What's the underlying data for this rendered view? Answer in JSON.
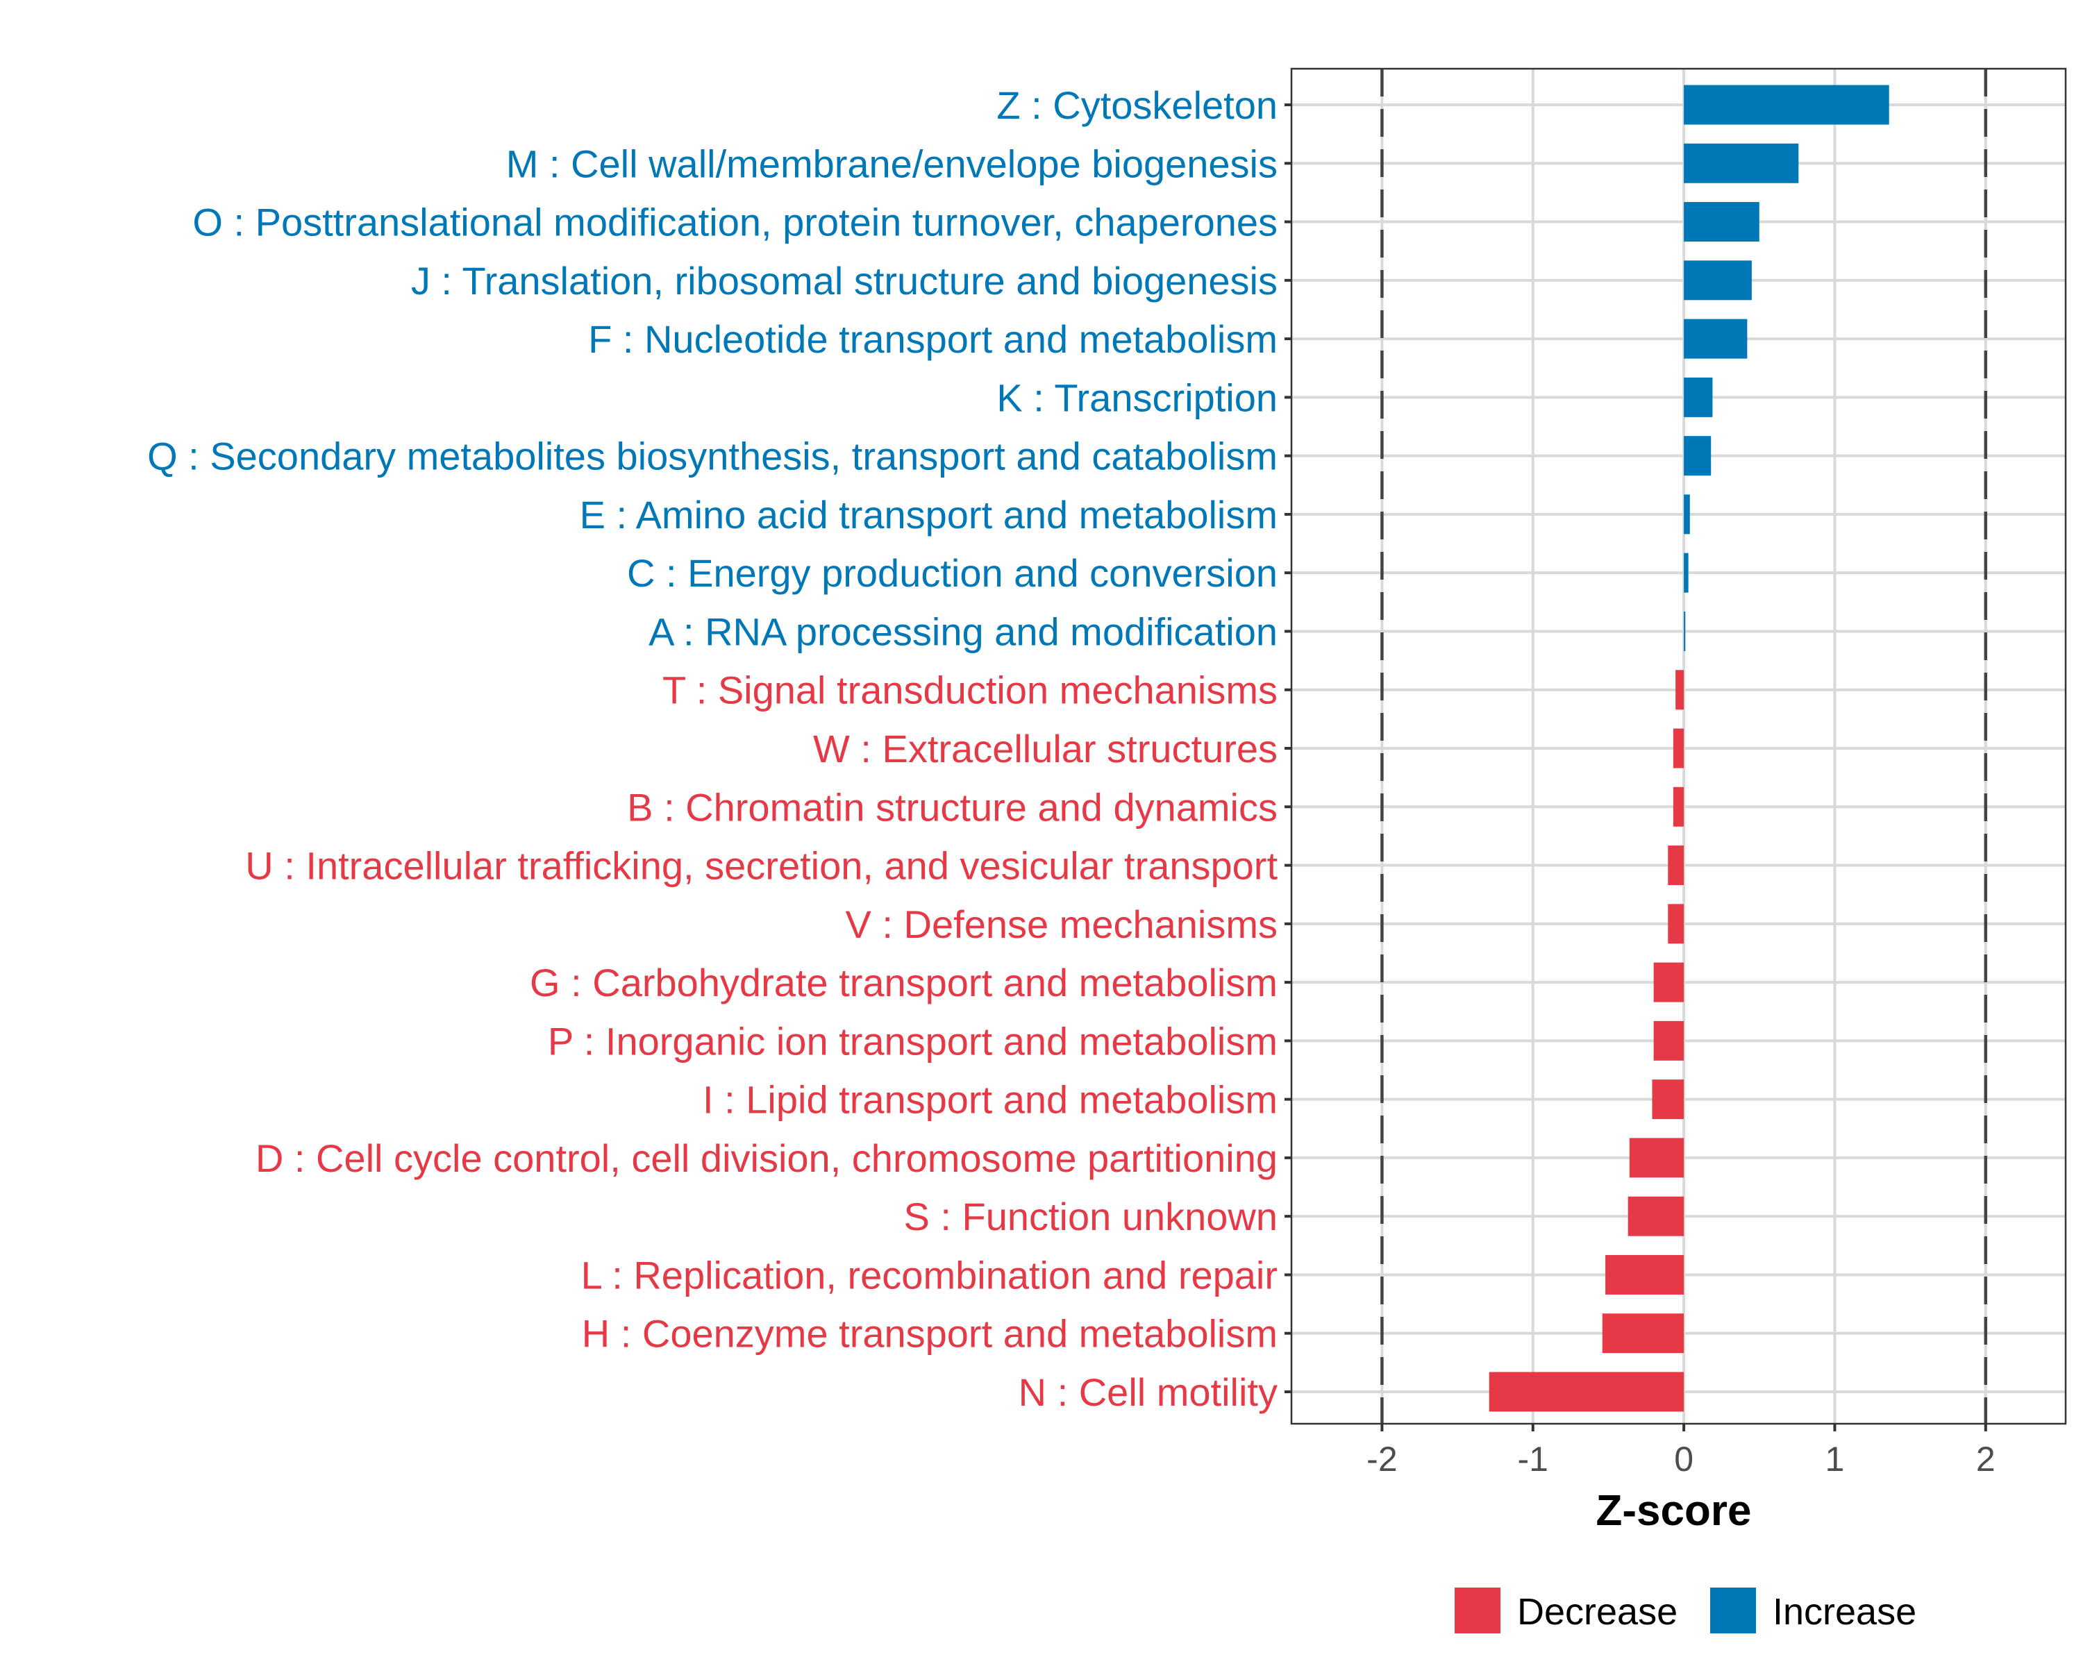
{
  "chart_data": {
    "type": "bar",
    "orientation": "horizontal",
    "title": "",
    "xlabel": "Z-score",
    "ylabel": "",
    "xlim": [
      -2.6,
      2.53
    ],
    "xticks": [
      -2,
      -1,
      0,
      1,
      2
    ],
    "xtick_labels": [
      "-2",
      "-1",
      "0",
      "1",
      "2"
    ],
    "reference_lines": [
      -2,
      2
    ],
    "grid": true,
    "legend_position": "bottom",
    "legend": [
      {
        "label": "Decrease",
        "color": "#E63946"
      },
      {
        "label": "Increase",
        "color": "#0077B6"
      }
    ],
    "colors": {
      "Decrease": "#E63946",
      "Increase": "#0077B6"
    },
    "categories": [
      "Z : Cytoskeleton",
      "M : Cell wall/membrane/envelope biogenesis",
      "O : Posttranslational modification, protein turnover, chaperones",
      "J : Translation, ribosomal structure and biogenesis",
      "F : Nucleotide transport and metabolism",
      "K : Transcription",
      "Q : Secondary metabolites biosynthesis, transport and catabolism",
      "E : Amino acid transport and metabolism",
      "C : Energy production and conversion",
      "A : RNA processing and modification",
      "T : Signal transduction mechanisms",
      "W : Extracellular structures",
      "B : Chromatin structure and dynamics",
      "U : Intracellular trafficking, secretion, and vesicular transport",
      "V : Defense mechanisms",
      "G : Carbohydrate transport and metabolism",
      "P : Inorganic ion transport and metabolism",
      "I : Lipid transport and metabolism",
      "D : Cell cycle control, cell division, chromosome partitioning",
      "S : Function unknown",
      "L : Replication, recombination and repair",
      "H : Coenzyme transport and metabolism",
      "N : Cell motility"
    ],
    "values": [
      1.36,
      0.76,
      0.5,
      0.45,
      0.42,
      0.19,
      0.18,
      0.04,
      0.03,
      0.01,
      -0.055,
      -0.07,
      -0.07,
      -0.105,
      -0.105,
      -0.2,
      -0.2,
      -0.21,
      -0.36,
      -0.37,
      -0.52,
      -0.54,
      -1.29
    ],
    "direction": [
      "Increase",
      "Increase",
      "Increase",
      "Increase",
      "Increase",
      "Increase",
      "Increase",
      "Increase",
      "Increase",
      "Increase",
      "Decrease",
      "Decrease",
      "Decrease",
      "Decrease",
      "Decrease",
      "Decrease",
      "Decrease",
      "Decrease",
      "Decrease",
      "Decrease",
      "Decrease",
      "Decrease",
      "Decrease"
    ]
  }
}
